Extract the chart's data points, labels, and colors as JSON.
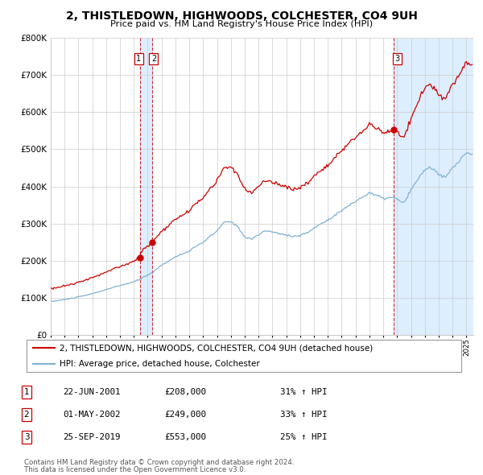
{
  "title": "2, THISTLEDOWN, HIGHWOODS, COLCHESTER, CO4 9UH",
  "subtitle": "Price paid vs. HM Land Registry's House Price Index (HPI)",
  "legend_line1": "2, THISTLEDOWN, HIGHWOODS, COLCHESTER, CO4 9UH (detached house)",
  "legend_line2": "HPI: Average price, detached house, Colchester",
  "table_rows": [
    {
      "num": "1",
      "date": "22-JUN-2001",
      "price": "£208,000",
      "hpi": "31% ↑ HPI"
    },
    {
      "num": "2",
      "date": "01-MAY-2002",
      "price": "£249,000",
      "hpi": "33% ↑ HPI"
    },
    {
      "num": "3",
      "date": "25-SEP-2019",
      "price": "£553,000",
      "hpi": "25% ↑ HPI"
    }
  ],
  "footnote1": "Contains HM Land Registry data © Crown copyright and database right 2024.",
  "footnote2": "This data is licensed under the Open Government Licence v3.0.",
  "red_color": "#cc0000",
  "blue_color": "#7fb3d3",
  "shade_color": "#ddeeff",
  "dashed_red": "#cc0000",
  "background_color": "#ffffff",
  "grid_color": "#cccccc",
  "ylim_max": 800000,
  "ylim_min": 0,
  "sale1_t": 2001.46,
  "sale2_t": 2002.33,
  "sale3_t": 2019.73,
  "sale1_price": 208000,
  "sale2_price": 249000,
  "sale3_price": 553000
}
